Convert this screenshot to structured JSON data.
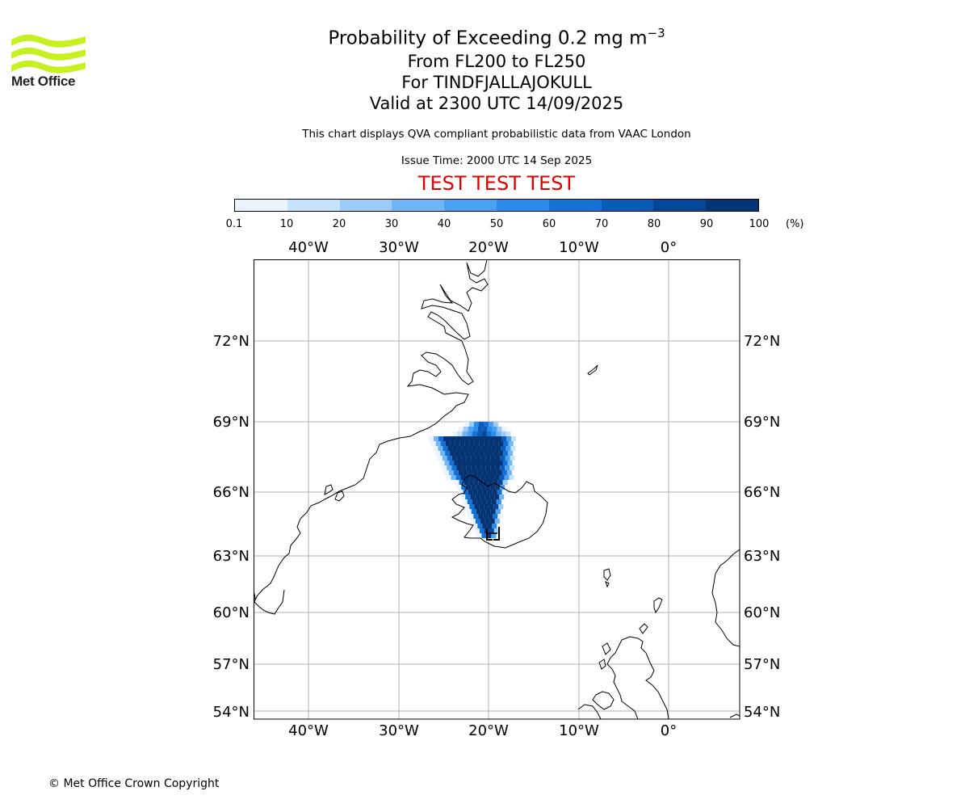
{
  "header": {
    "logo_text": "Met Office",
    "title_main": "Probability of Exceeding 0.2 mg m",
    "title_exp": "−3",
    "title_levels": "From FL200 to FL250",
    "title_volcano": "For TINDFJALLAJOKULL",
    "title_valid": "Valid at 2300 UTC 14/09/2025",
    "disclaimer": "This chart displays QVA compliant probabilistic data from VAAC London",
    "issue_time": "Issue Time: 2000 UTC 14 Sep 2025",
    "test_banner": "TEST TEST TEST"
  },
  "colorbar": {
    "unit": "(%)",
    "ticks": [
      "0.1",
      "10",
      "20",
      "30",
      "40",
      "50",
      "60",
      "70",
      "80",
      "90",
      "100"
    ],
    "colors": [
      "#eaf3fe",
      "#c6e1fb",
      "#9ccbf8",
      "#72b5f5",
      "#4ba0f2",
      "#2c8ced",
      "#1472d6",
      "#0a5bb8",
      "#064696",
      "#043473"
    ]
  },
  "map": {
    "lon_labels": [
      "40°W",
      "30°W",
      "20°W",
      "10°W",
      "0°"
    ],
    "lat_labels": [
      "72°N",
      "69°N",
      "66°N",
      "63°N",
      "60°N",
      "57°N",
      "54°N"
    ],
    "volcano_marker": "Tindfjallajokull"
  },
  "footer": {
    "copyright": "© Met Office Crown Copyright"
  }
}
